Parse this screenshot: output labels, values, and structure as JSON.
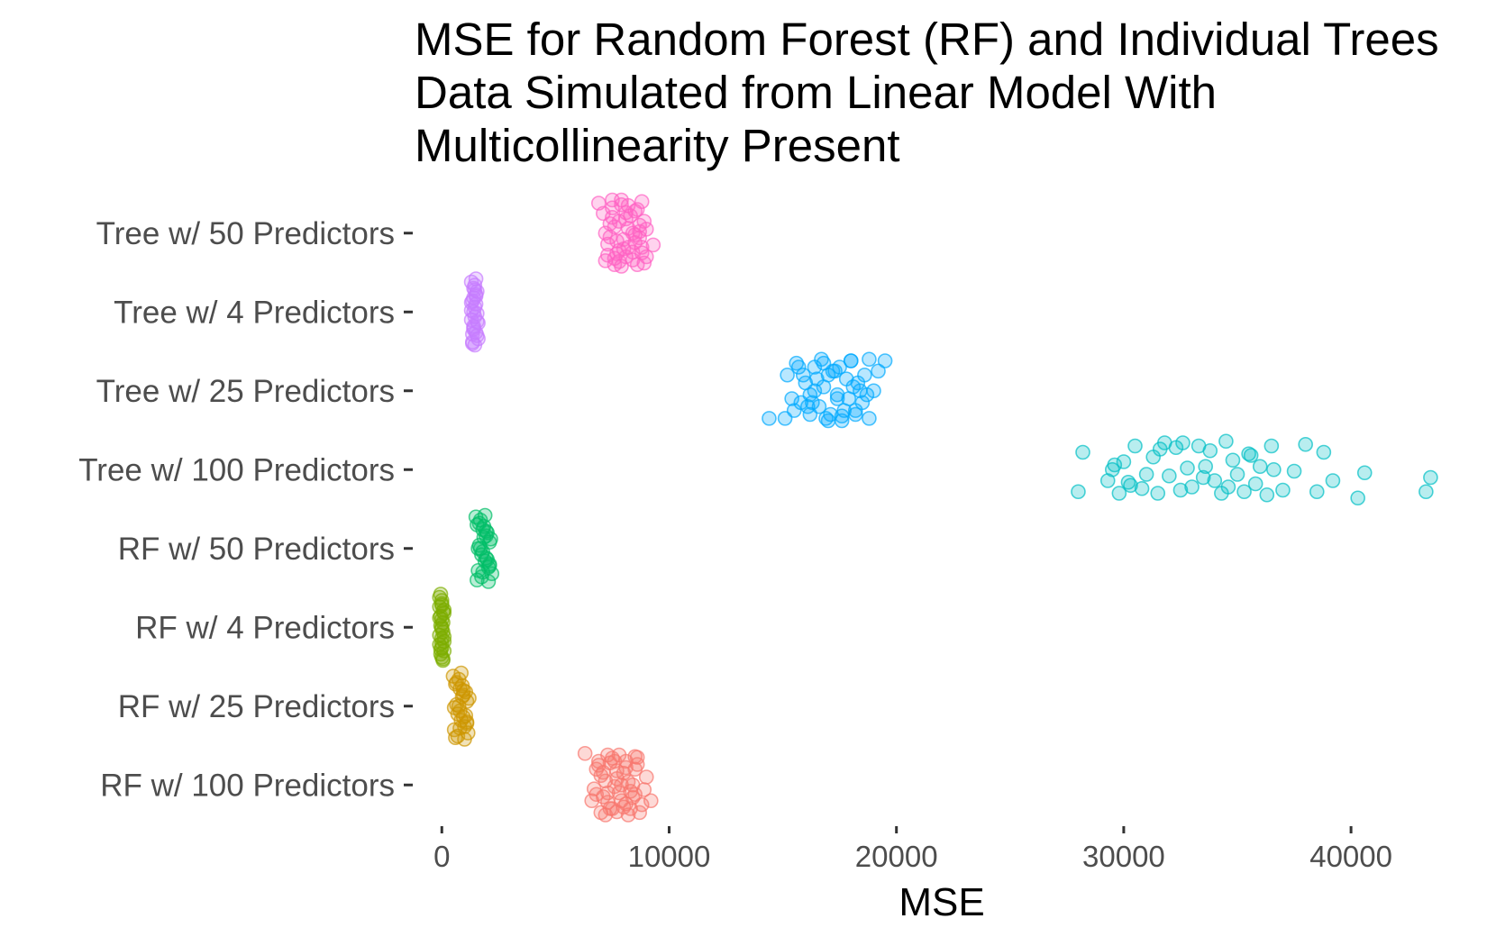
{
  "chart_data": {
    "type": "scatter",
    "title": [
      "MSE for Random Forest (RF) and Individual Trees",
      "Data Simulated from Linear Model With",
      "Multicollinearity Present"
    ],
    "xlabel": "MSE",
    "ylabel": "",
    "xlim": [
      -1200,
      44000
    ],
    "xticks": [
      0,
      10000,
      20000,
      30000,
      40000
    ],
    "xtick_labels": [
      "0",
      "10000",
      "20000",
      "30000",
      "40000"
    ],
    "grid": false,
    "legend": "none",
    "marker": "open-circle",
    "categories": [
      "Tree w/ 50 Predictors",
      "Tree w/ 4 Predictors",
      "Tree w/ 25 Predictors",
      "Tree w/ 100 Predictors",
      "RF w/ 50 Predictors",
      "RF w/ 4 Predictors",
      "RF w/ 25 Predictors",
      "RF w/ 100 Predictors"
    ],
    "series": [
      {
        "category": "Tree w/ 50 Predictors",
        "color": "#FF61C3",
        "x": [
          6900,
          7200,
          7500,
          7700,
          7900,
          8100,
          8400,
          8600,
          8800,
          9000,
          9300,
          7100,
          7400,
          7600,
          7800,
          8000,
          8200,
          8500,
          8700,
          8900,
          7300,
          7600,
          7900,
          8200,
          8500,
          8800,
          7200,
          7500,
          7800,
          8100,
          8400,
          8700,
          9000,
          7400,
          7700,
          8000,
          8300,
          8600,
          8900,
          7300,
          7600,
          7900,
          8200,
          8500,
          8800,
          7500,
          7800,
          8100,
          8400,
          8700
        ],
        "jitter": [
          -0.38,
          0.35,
          -0.2,
          0.1,
          -0.42,
          0.3,
          0.0,
          -0.3,
          0.25,
          -0.05,
          0.15,
          -0.25,
          0.05,
          0.4,
          -0.15,
          0.2,
          -0.35,
          0.12,
          -0.1,
          0.38,
          0.28,
          -0.08,
          0.42,
          0.18,
          -0.28,
          -0.4,
          0.0,
          -0.32,
          0.22,
          -0.18,
          0.34,
          0.06,
          0.3,
          -0.12,
          0.26,
          0.08,
          -0.22,
          0.4,
          -0.15,
          0.14,
          0.32,
          -0.36,
          -0.06,
          0.02,
          0.18,
          -0.42,
          0.36,
          -0.26,
          0.24,
          -0.02
        ]
      },
      {
        "category": "Tree w/ 4 Predictors",
        "color": "#C77CFF",
        "x": [
          1300,
          1400,
          1500,
          1350,
          1450,
          1550,
          1300,
          1400,
          1500,
          1600,
          1350,
          1450,
          1550,
          1400,
          1500,
          1300,
          1450,
          1600,
          1400,
          1550,
          1350,
          1500,
          1450,
          1400,
          1300,
          1550,
          1450,
          1350,
          1500,
          1400
        ],
        "jitter": [
          -0.38,
          -0.3,
          -0.22,
          -0.14,
          -0.06,
          0.02,
          0.1,
          0.18,
          0.26,
          0.34,
          0.4,
          -0.34,
          -0.26,
          -0.18,
          -0.1,
          -0.02,
          0.06,
          0.14,
          0.22,
          0.3,
          0.38,
          -0.42,
          0.42,
          0.0,
          -0.12,
          0.12,
          -0.28,
          0.28,
          -0.2,
          0.2
        ]
      },
      {
        "category": "Tree w/ 25 Predictors",
        "color": "#00A9FF",
        "x": [
          14400,
          15100,
          15200,
          15400,
          15600,
          15800,
          16000,
          16200,
          16400,
          16600,
          16800,
          17000,
          17200,
          17400,
          17600,
          17800,
          18000,
          18200,
          18400,
          18600,
          18800,
          19200,
          19500,
          15500,
          15900,
          16300,
          16700,
          17100,
          17500,
          17900,
          18300,
          18700,
          16100,
          16500,
          16900,
          17300,
          17700,
          18100,
          18500,
          15700,
          16200,
          16800,
          17400,
          18000,
          19000,
          16400,
          17000,
          17600,
          18200,
          18800
        ],
        "jitter": [
          0.35,
          0.35,
          -0.2,
          0.1,
          -0.35,
          0.15,
          -0.1,
          0.3,
          -0.3,
          0.2,
          -0.05,
          0.38,
          -0.25,
          0.05,
          0.32,
          -0.15,
          -0.38,
          0.25,
          0.0,
          -0.2,
          0.35,
          -0.25,
          -0.38,
          0.25,
          -0.2,
          0.15,
          -0.4,
          0.3,
          -0.3,
          0.1,
          -0.1,
          0.05,
          0.2,
          -0.15,
          0.35,
          -0.25,
          0.25,
          -0.05,
          0.15,
          -0.3,
          0.05,
          -0.35,
          0.1,
          -0.38,
          0.0,
          0.0,
          -0.2,
          0.38,
          0.3,
          -0.4
        ]
      },
      {
        "category": "Tree w/ 100 Predictors",
        "color": "#00BFC4",
        "x": [
          28000,
          28200,
          29300,
          29500,
          29800,
          30000,
          30300,
          30500,
          30800,
          31000,
          31300,
          31500,
          31800,
          32000,
          32300,
          32500,
          32800,
          33000,
          33300,
          33500,
          33800,
          34000,
          34300,
          34500,
          34800,
          35000,
          35300,
          35500,
          35800,
          36000,
          36300,
          36500,
          37000,
          37500,
          38000,
          38500,
          38800,
          39200,
          40300,
          40600,
          43300,
          43500,
          29600,
          30200,
          31600,
          32600,
          33600,
          34600,
          35600,
          36600
        ],
        "jitter": [
          0.28,
          -0.22,
          0.14,
          0.0,
          0.3,
          -0.1,
          0.2,
          -0.3,
          0.24,
          0.06,
          -0.16,
          0.3,
          -0.34,
          0.08,
          -0.28,
          0.26,
          -0.02,
          0.22,
          -0.3,
          0.1,
          -0.24,
          0.14,
          0.3,
          -0.36,
          -0.12,
          0.06,
          0.28,
          -0.2,
          0.18,
          -0.04,
          0.32,
          -0.3,
          0.26,
          0.02,
          -0.32,
          0.28,
          -0.22,
          0.14,
          0.36,
          0.04,
          0.28,
          0.1,
          -0.06,
          0.16,
          -0.26,
          -0.34,
          -0.04,
          0.22,
          -0.18,
          0.0
        ]
      },
      {
        "category": "RF w/ 50 Predictors",
        "color": "#00BE67",
        "x": [
          1500,
          1650,
          1800,
          1950,
          2100,
          1600,
          1750,
          1900,
          2050,
          2200,
          1550,
          1700,
          1850,
          2000,
          2150,
          1650,
          1800,
          1950,
          2100,
          1600,
          1750,
          1900,
          2050,
          1700,
          1850,
          2000,
          1550,
          1800,
          1950,
          2100
        ],
        "jitter": [
          -0.4,
          -0.32,
          -0.24,
          -0.16,
          -0.08,
          0.0,
          0.08,
          0.16,
          0.24,
          0.32,
          0.4,
          -0.36,
          -0.28,
          -0.2,
          -0.12,
          -0.04,
          0.04,
          0.12,
          0.2,
          0.28,
          0.36,
          -0.42,
          0.42,
          0.0,
          -0.14,
          0.14,
          -0.3,
          0.3,
          -0.22,
          0.22
        ]
      },
      {
        "category": "RF w/ 4 Predictors",
        "color": "#7CAE00",
        "x": [
          -100,
          0,
          100,
          -50,
          50,
          0,
          -100,
          100,
          0,
          -50,
          50,
          0,
          -100,
          100,
          0,
          -50,
          50,
          0,
          -100,
          100,
          0,
          -50,
          50,
          0,
          -100,
          100,
          0,
          -50,
          50,
          0
        ],
        "jitter": [
          -0.38,
          -0.3,
          -0.22,
          -0.14,
          -0.06,
          0.02,
          0.1,
          0.18,
          0.26,
          0.34,
          0.4,
          -0.34,
          -0.26,
          -0.18,
          -0.1,
          -0.02,
          0.06,
          0.14,
          0.22,
          0.3,
          0.38,
          -0.42,
          0.42,
          0.0,
          -0.12,
          0.12,
          -0.28,
          0.28,
          -0.2,
          0.2
        ]
      },
      {
        "category": "RF w/ 25 Predictors",
        "color": "#CD9600",
        "x": [
          500,
          650,
          800,
          950,
          1100,
          550,
          700,
          850,
          1000,
          1150,
          600,
          750,
          900,
          1050,
          1200,
          650,
          800,
          950,
          1100,
          550,
          700,
          850,
          1000,
          750,
          900,
          1050,
          600,
          800,
          950,
          1100
        ],
        "jitter": [
          -0.38,
          -0.3,
          -0.22,
          -0.14,
          -0.06,
          0.02,
          0.1,
          0.18,
          0.26,
          0.34,
          0.4,
          -0.34,
          -0.26,
          -0.18,
          -0.1,
          -0.02,
          0.06,
          0.14,
          0.22,
          0.3,
          0.38,
          -0.42,
          0.42,
          0.0,
          -0.12,
          0.12,
          -0.28,
          0.28,
          -0.2,
          0.2
        ]
      },
      {
        "category": "RF w/ 100 Predictors",
        "color": "#F8766D",
        "x": [
          6300,
          6600,
          6800,
          7000,
          7200,
          7400,
          7600,
          7800,
          8000,
          8200,
          8400,
          8600,
          8800,
          9000,
          9200,
          6700,
          6900,
          7100,
          7300,
          7500,
          7700,
          7900,
          8100,
          8300,
          8500,
          8700,
          6800,
          7000,
          7200,
          7400,
          7600,
          7800,
          8000,
          8200,
          8400,
          8600,
          8900,
          7100,
          7300,
          7500,
          7700,
          7900,
          8100,
          8300,
          8500,
          6900,
          7300,
          7700,
          8100,
          8500
        ],
        "jitter": [
          -0.4,
          0.2,
          -0.2,
          0.35,
          -0.05,
          0.3,
          -0.3,
          0.1,
          -0.15,
          0.38,
          0.0,
          -0.35,
          0.25,
          -0.1,
          0.2,
          0.05,
          -0.25,
          0.15,
          -0.38,
          0.3,
          -0.08,
          0.2,
          -0.3,
          0.08,
          -0.2,
          0.35,
          0.12,
          -0.12,
          0.38,
          -0.28,
          0.02,
          -0.38,
          0.28,
          -0.04,
          0.16,
          -0.26,
          0.06,
          -0.16,
          0.22,
          -0.34,
          0.34,
          0.0,
          -0.22,
          0.3,
          -0.36,
          -0.3,
          0.1,
          -0.18,
          0.24,
          0.12
        ]
      }
    ]
  }
}
